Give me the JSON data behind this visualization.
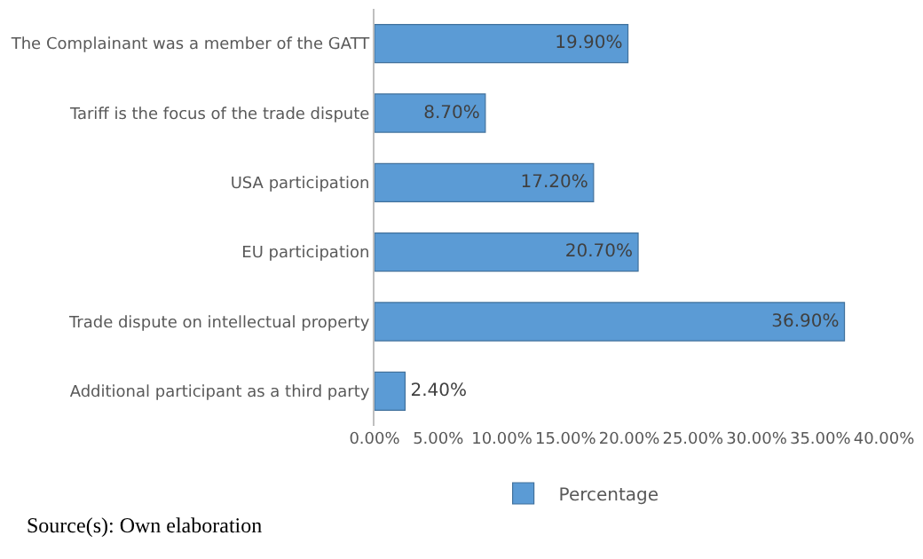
{
  "chart_data": {
    "type": "bar",
    "orientation": "horizontal",
    "categories": [
      "The Complainant was a member of the GATT",
      "Tariff is the focus of the trade dispute",
      "USA participation",
      "EU participation",
      "Trade dispute on intellectual property",
      "Additional participant as a third party"
    ],
    "series": [
      {
        "name": "Percentage",
        "color": "#5b9bd5",
        "values": [
          19.9,
          8.7,
          17.2,
          20.7,
          36.9,
          2.4
        ],
        "value_labels": [
          "19.90%",
          "8.70%",
          "17.20%",
          "20.70%",
          "36.90%",
          "2.40%"
        ]
      }
    ],
    "xlim": [
      0,
      40
    ],
    "xticks": [
      {
        "value": 0,
        "label": "0.00%"
      },
      {
        "value": 5,
        "label": "5.00%"
      },
      {
        "value": 10,
        "label": "10.00%"
      },
      {
        "value": 15,
        "label": "15.00%"
      },
      {
        "value": 20,
        "label": "20.00%"
      },
      {
        "value": 25,
        "label": "25.00%"
      },
      {
        "value": 30,
        "label": "30.00%"
      },
      {
        "value": 35,
        "label": "35.00%"
      },
      {
        "value": 40,
        "label": "40.00%"
      }
    ],
    "grid": false,
    "legend": "bottom",
    "annotations": [
      "Source(s): Own elaboration"
    ]
  }
}
